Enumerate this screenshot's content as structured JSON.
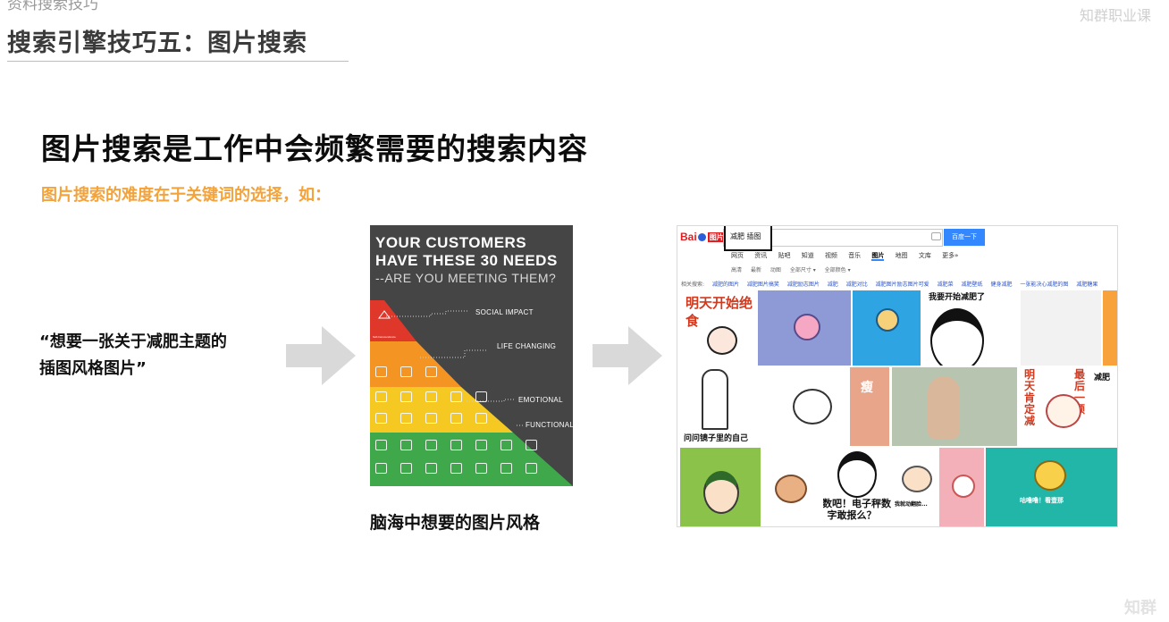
{
  "header": {
    "top_label": "资料搜索技巧",
    "slide_title": "搜索引擎技巧五：图片搜索",
    "brand": "知群职业课",
    "brand_bottom": "知群"
  },
  "main": {
    "heading": "图片搜索是工作中会频繁需要的搜索内容",
    "subheading": "图片搜索的难度在于关键词的选择，如：",
    "quote_line1": "“想要一张关于减肥主题的",
    "quote_line2": "插图风格图片”",
    "caption": "脑海中想要的图片风格"
  },
  "poster": {
    "line1": "YOUR CUSTOMERS",
    "line2": "HAVE THESE 30 NEEDS",
    "line3": "--ARE YOU MEETING THEM?",
    "tiers": [
      "SOCIAL IMPACT",
      "LIFE CHANGING",
      "EMOTIONAL",
      "FUNCTIONAL"
    ],
    "colors": {
      "red": "#e0372b",
      "orange": "#f39423",
      "yellow": "#f6c922",
      "green": "#3fa84a",
      "background": "#454545"
    }
  },
  "baidu": {
    "logo_text": "Bai",
    "logo_suffix": "百度",
    "logo_tag": "图片",
    "query": "减肥 插图",
    "search_button": "百度一下",
    "nav": [
      "网页",
      "资讯",
      "贴吧",
      "知道",
      "视频",
      "音乐",
      "图片",
      "地图",
      "文库",
      "更多»"
    ],
    "active_nav": "图片",
    "filters": [
      "高清",
      "最新",
      "动图",
      "全部尺寸 ▾",
      "全部颜色 ▾"
    ],
    "related_label": "相关搜索:",
    "related": [
      "减肥的图片",
      "减肥图片搞笑",
      "减肥励志图片",
      "减肥",
      "减肥对比",
      "减肥图片励志图片可爱",
      "减肥菜",
      "减肥壁纸",
      "健身减肥",
      "一张能决心减肥的图",
      "减肥糖果"
    ],
    "tile_texts": {
      "t1": "明天开始绝食",
      "t4": "我要开始减肥了",
      "t7": "问问镜子里的自己",
      "t9": "瘦",
      "t11": "明天肯定减",
      "t12": "最后一顿",
      "t12b": "减肥",
      "t14": "报数吧！电子秤数字敢报么？",
      "t15": "我就动翻脸...",
      "t17": "咕噜噜！看壹那"
    },
    "accent": "#3388ff"
  }
}
